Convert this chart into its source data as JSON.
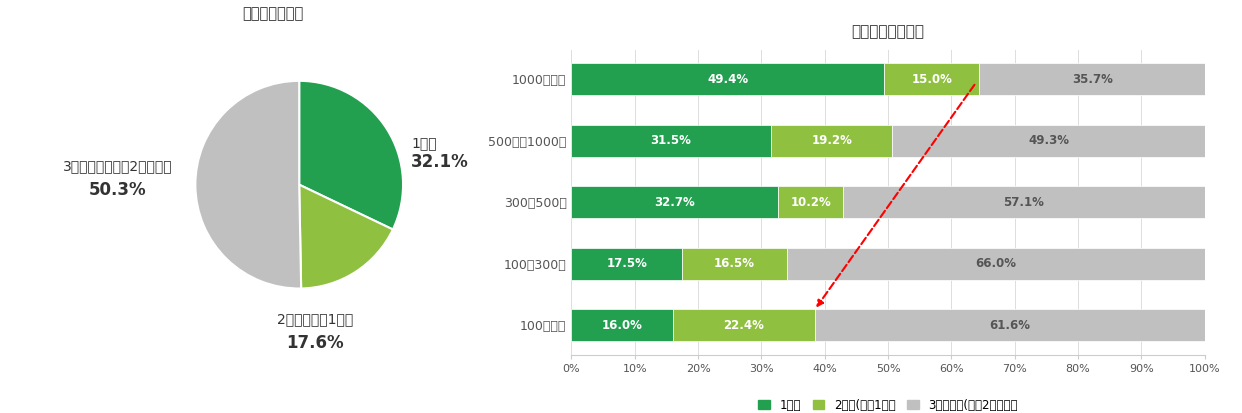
{
  "pie_title": "転職回数の割合",
  "pie_labels": [
    "1社目",
    "2社目（転職1回）",
    "3社目以上（転職2回以上）"
  ],
  "pie_values": [
    32.1,
    17.6,
    50.3
  ],
  "pie_colors": [
    "#22a050",
    "#90c040",
    "#c0c0c0"
  ],
  "bar_title": "社員数別転職回数",
  "bar_categories": [
    "1000名以上",
    "500名～1000名",
    "300～500名",
    "100～300名",
    "100名以下"
  ],
  "bar_s1": [
    49.4,
    31.5,
    32.7,
    17.5,
    16.0
  ],
  "bar_s2": [
    15.0,
    19.2,
    10.2,
    16.5,
    22.4
  ],
  "bar_s3": [
    35.7,
    49.3,
    57.1,
    66.0,
    61.6
  ],
  "bar_color1": "#22a050",
  "bar_color2": "#90c040",
  "bar_color3": "#c0c0c0",
  "bar_legend": [
    "1社目",
    "2社目(転職1回）",
    "3社目以上(転職2回以上）"
  ],
  "background_color": "#ffffff"
}
